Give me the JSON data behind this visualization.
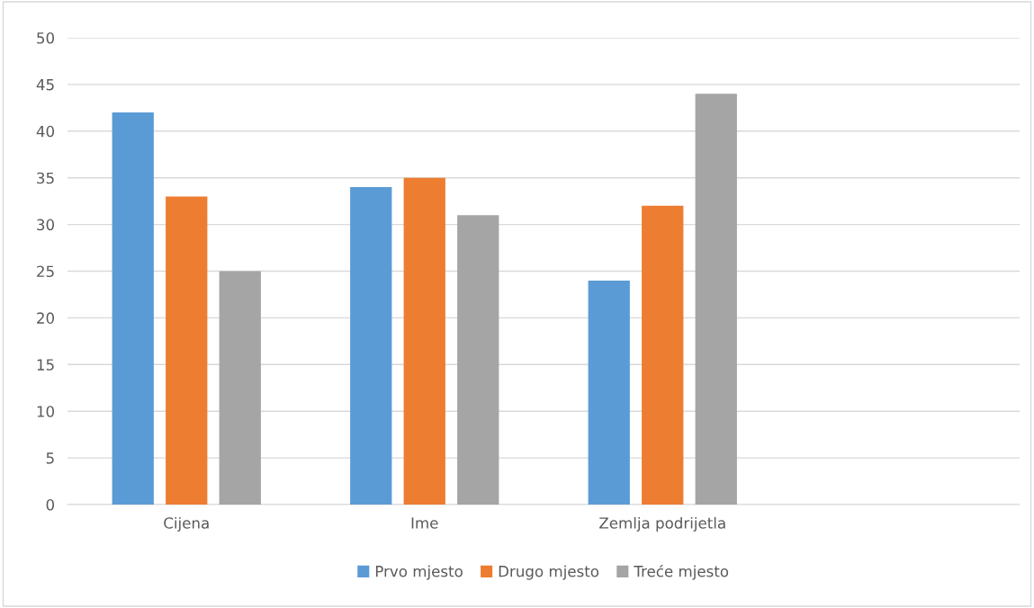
{
  "chart_data": {
    "type": "bar",
    "categories": [
      "Cijena",
      "Ime",
      "Zemlja podrijetla",
      null
    ],
    "series": [
      {
        "name": "Prvo mjesto",
        "color": "#5b9bd5",
        "values": [
          42,
          34,
          24,
          null
        ]
      },
      {
        "name": "Drugo mjesto",
        "color": "#ed7d31",
        "values": [
          33,
          35,
          32,
          null
        ]
      },
      {
        "name": "Treće mjesto",
        "color": "#a5a5a5",
        "values": [
          25,
          31,
          44,
          null
        ]
      }
    ],
    "ylim": [
      0,
      50
    ],
    "yticks": [
      0,
      5,
      10,
      15,
      20,
      25,
      30,
      35,
      40,
      45,
      50
    ],
    "grid": "y",
    "legend": "bottom"
  }
}
